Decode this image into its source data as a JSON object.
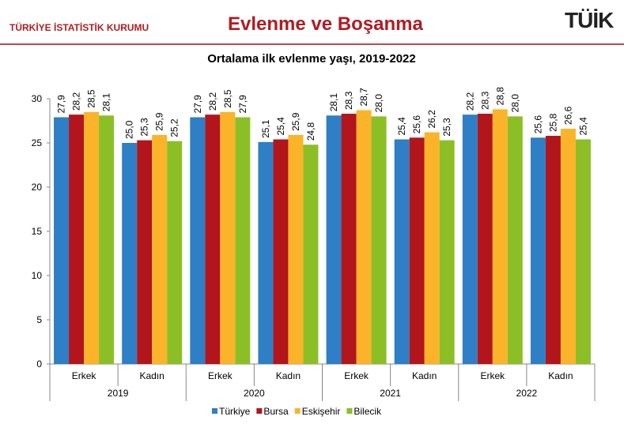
{
  "header": {
    "organization": "TÜRKİYE İSTATİSTİK KURUMU",
    "page_title": "Evlenme ve Boşanma",
    "logo_text": "TÜİK"
  },
  "chart_data": {
    "type": "bar",
    "title": "Ortalama ilk evlenme yaşı, 2019-2022",
    "ylim": [
      0,
      30
    ],
    "yticks": [
      0,
      5,
      10,
      15,
      20,
      25,
      30
    ],
    "grid": false,
    "legend_position": "bottom",
    "years": [
      "2019",
      "2020",
      "2021",
      "2022"
    ],
    "categories": [
      "Erkek",
      "Kadın",
      "Erkek",
      "Kadın",
      "Erkek",
      "Kadın",
      "Erkek",
      "Kadın"
    ],
    "series": [
      {
        "name": "Türkiye",
        "color": "#2e7fc5",
        "values": [
          27.9,
          25.0,
          27.9,
          25.1,
          28.1,
          25.4,
          28.2,
          25.6
        ]
      },
      {
        "name": "Bursa",
        "color": "#b2151b",
        "values": [
          28.2,
          25.3,
          28.2,
          25.4,
          28.3,
          25.6,
          28.3,
          25.8
        ]
      },
      {
        "name": "Eskişehir",
        "color": "#fbb429",
        "values": [
          28.5,
          25.9,
          28.5,
          25.9,
          28.7,
          26.2,
          28.8,
          26.6
        ]
      },
      {
        "name": "Bilecik",
        "color": "#8cbf26",
        "values": [
          28.1,
          25.2,
          27.9,
          24.8,
          28.0,
          25.3,
          28.0,
          25.4
        ]
      }
    ]
  }
}
